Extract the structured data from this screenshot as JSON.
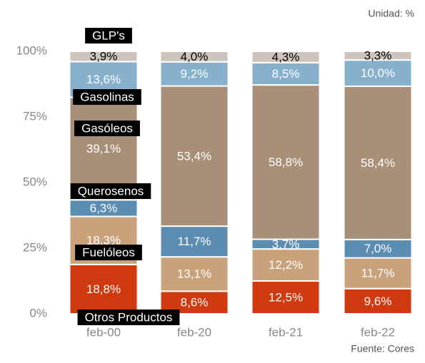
{
  "chart_data": {
    "type": "stacked_bar",
    "annotations": [
      "Unidad: %",
      "Fuente: Cores"
    ],
    "categories": [
      "feb-00",
      "feb-20",
      "feb-21",
      "feb-22"
    ],
    "ylim": [
      0,
      100
    ],
    "yticks": [
      {
        "value": 0,
        "label": "0%"
      },
      {
        "value": 25,
        "label": "25%"
      },
      {
        "value": 50,
        "label": "50%"
      },
      {
        "value": 75,
        "label": "75%"
      },
      {
        "value": 100,
        "label": "100%"
      }
    ],
    "grid": false,
    "series": [
      {
        "name": "Otros Productos",
        "color": "#d03a10",
        "label_color": "#ffffff",
        "values": [
          18.8,
          8.6,
          12.5,
          9.6
        ],
        "value_labels": [
          "18,8%",
          "8,6%",
          "12,5%",
          "9,6%"
        ]
      },
      {
        "name": "Fuelóleos",
        "color": "#c9a27c",
        "label_color": "#ffffff",
        "values": [
          18.3,
          13.1,
          12.2,
          11.7
        ],
        "value_labels": [
          "18,3%",
          "13,1%",
          "12,2%",
          "11,7%"
        ]
      },
      {
        "name": "Querosenos",
        "color": "#5b8db3",
        "label_color": "#ffffff",
        "values": [
          6.3,
          11.7,
          3.7,
          7.0
        ],
        "value_labels": [
          "6,3%",
          "11,7%",
          "3,7%",
          "7,0%"
        ]
      },
      {
        "name": "Gasóleos",
        "color": "#a89078",
        "label_color": "#ffffff",
        "values": [
          39.1,
          53.4,
          58.8,
          58.4
        ],
        "value_labels": [
          "39,1%",
          "53,4%",
          "58,8%",
          "58,4%"
        ]
      },
      {
        "name": "Gasolinas",
        "color": "#87b0cc",
        "label_color": "#ffffff",
        "values": [
          13.6,
          9.2,
          8.5,
          10.0
        ],
        "value_labels": [
          "13,6%",
          "9,2%",
          "8,5%",
          "10,0%"
        ]
      },
      {
        "name": "GLP's",
        "color": "#cdc4bb",
        "label_color": "#000000",
        "values": [
          3.9,
          4.0,
          4.3,
          3.3
        ],
        "value_labels": [
          "3,9%",
          "4,0%",
          "4,3%",
          "3,3%"
        ]
      }
    ]
  }
}
